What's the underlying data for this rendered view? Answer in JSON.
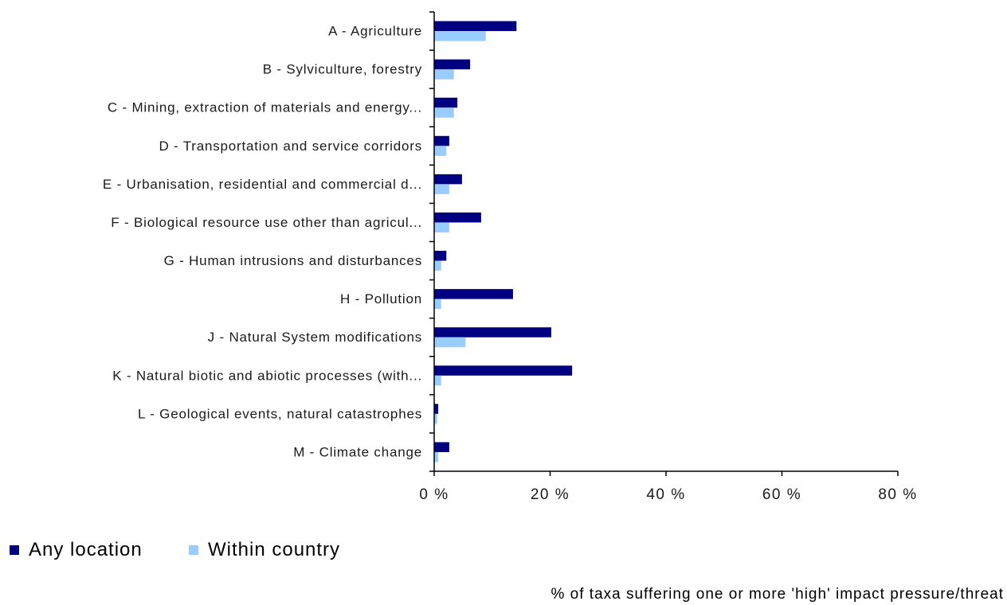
{
  "chart_data": {
    "type": "bar",
    "orientation": "horizontal",
    "categories": [
      "A - Agriculture",
      "B - Sylviculture, forestry",
      "C - Mining, extraction of materials and energy...",
      "D - Transportation and service corridors",
      "E - Urbanisation, residential and commercial d...",
      "F - Biological resource use other than agricul...",
      "G - Human intrusions and disturbances",
      "H - Pollution",
      "J - Natural System modifications",
      "K - Natural biotic and abiotic processes (with...",
      "L - Geological events, natural catastrophes",
      "M - Climate change"
    ],
    "series": [
      {
        "name": "Any location",
        "color": "#000080",
        "values": [
          14.2,
          6.2,
          4.0,
          2.6,
          4.8,
          8.1,
          2.1,
          13.6,
          20.2,
          23.8,
          0.7,
          2.6
        ]
      },
      {
        "name": "Within country",
        "color": "#99CCFF",
        "values": [
          8.9,
          3.4,
          3.4,
          2.1,
          2.6,
          2.6,
          1.2,
          1.2,
          5.4,
          1.2,
          0.5,
          0.7
        ]
      }
    ],
    "xlim": [
      0,
      80
    ],
    "x_ticks": [
      0,
      20,
      40,
      60,
      80
    ],
    "x_tick_labels": [
      "0 %",
      "20 %",
      "40 %",
      "60 %",
      "80 %"
    ],
    "xlabel": "% of taxa suffering one or more 'high' impact pressure/threat",
    "grid": false,
    "legend_position": "bottom-left"
  }
}
